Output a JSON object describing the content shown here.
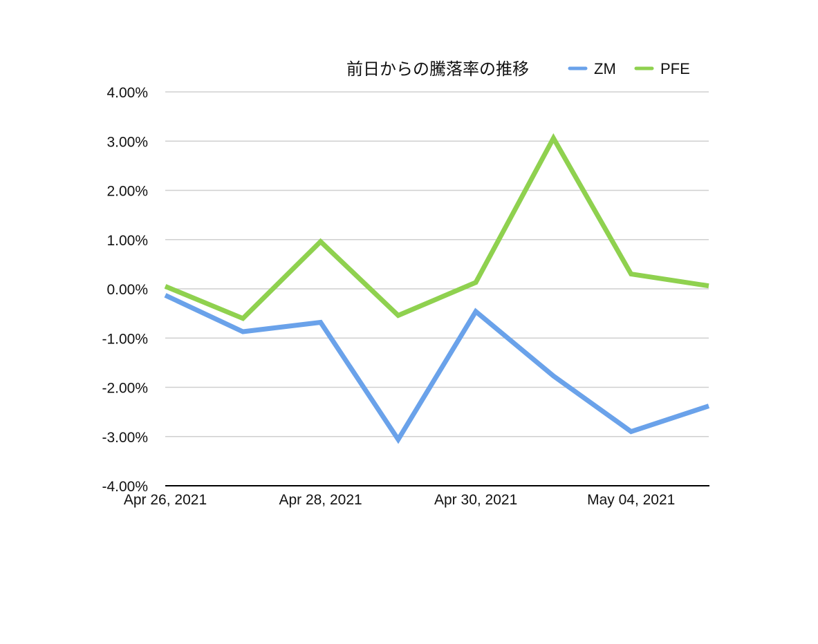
{
  "chart_data": {
    "type": "line",
    "title": "前日からの騰落率の推移",
    "xlabel": "",
    "ylabel": "",
    "ylim": [
      -4,
      4
    ],
    "y_ticks": [
      "4.00%",
      "3.00%",
      "2.00%",
      "1.00%",
      "0.00%",
      "-1.00%",
      "-2.00%",
      "-3.00%",
      "-4.00%"
    ],
    "x_ticks": [
      "Apr 26, 2021",
      "Apr 28, 2021",
      "Apr 30, 2021",
      "May 04, 2021"
    ],
    "grid": true,
    "legend": "top-right",
    "series": [
      {
        "name": "ZM",
        "color": "#6aa2ea",
        "values": [
          -0.13,
          -0.87,
          -0.68,
          -3.06,
          -0.46,
          -1.77,
          -2.9,
          -2.38
        ]
      },
      {
        "name": "PFE",
        "color": "#8fd14f",
        "values": [
          0.05,
          -0.6,
          0.96,
          -0.54,
          0.13,
          3.06,
          0.3,
          0.06
        ]
      }
    ]
  }
}
